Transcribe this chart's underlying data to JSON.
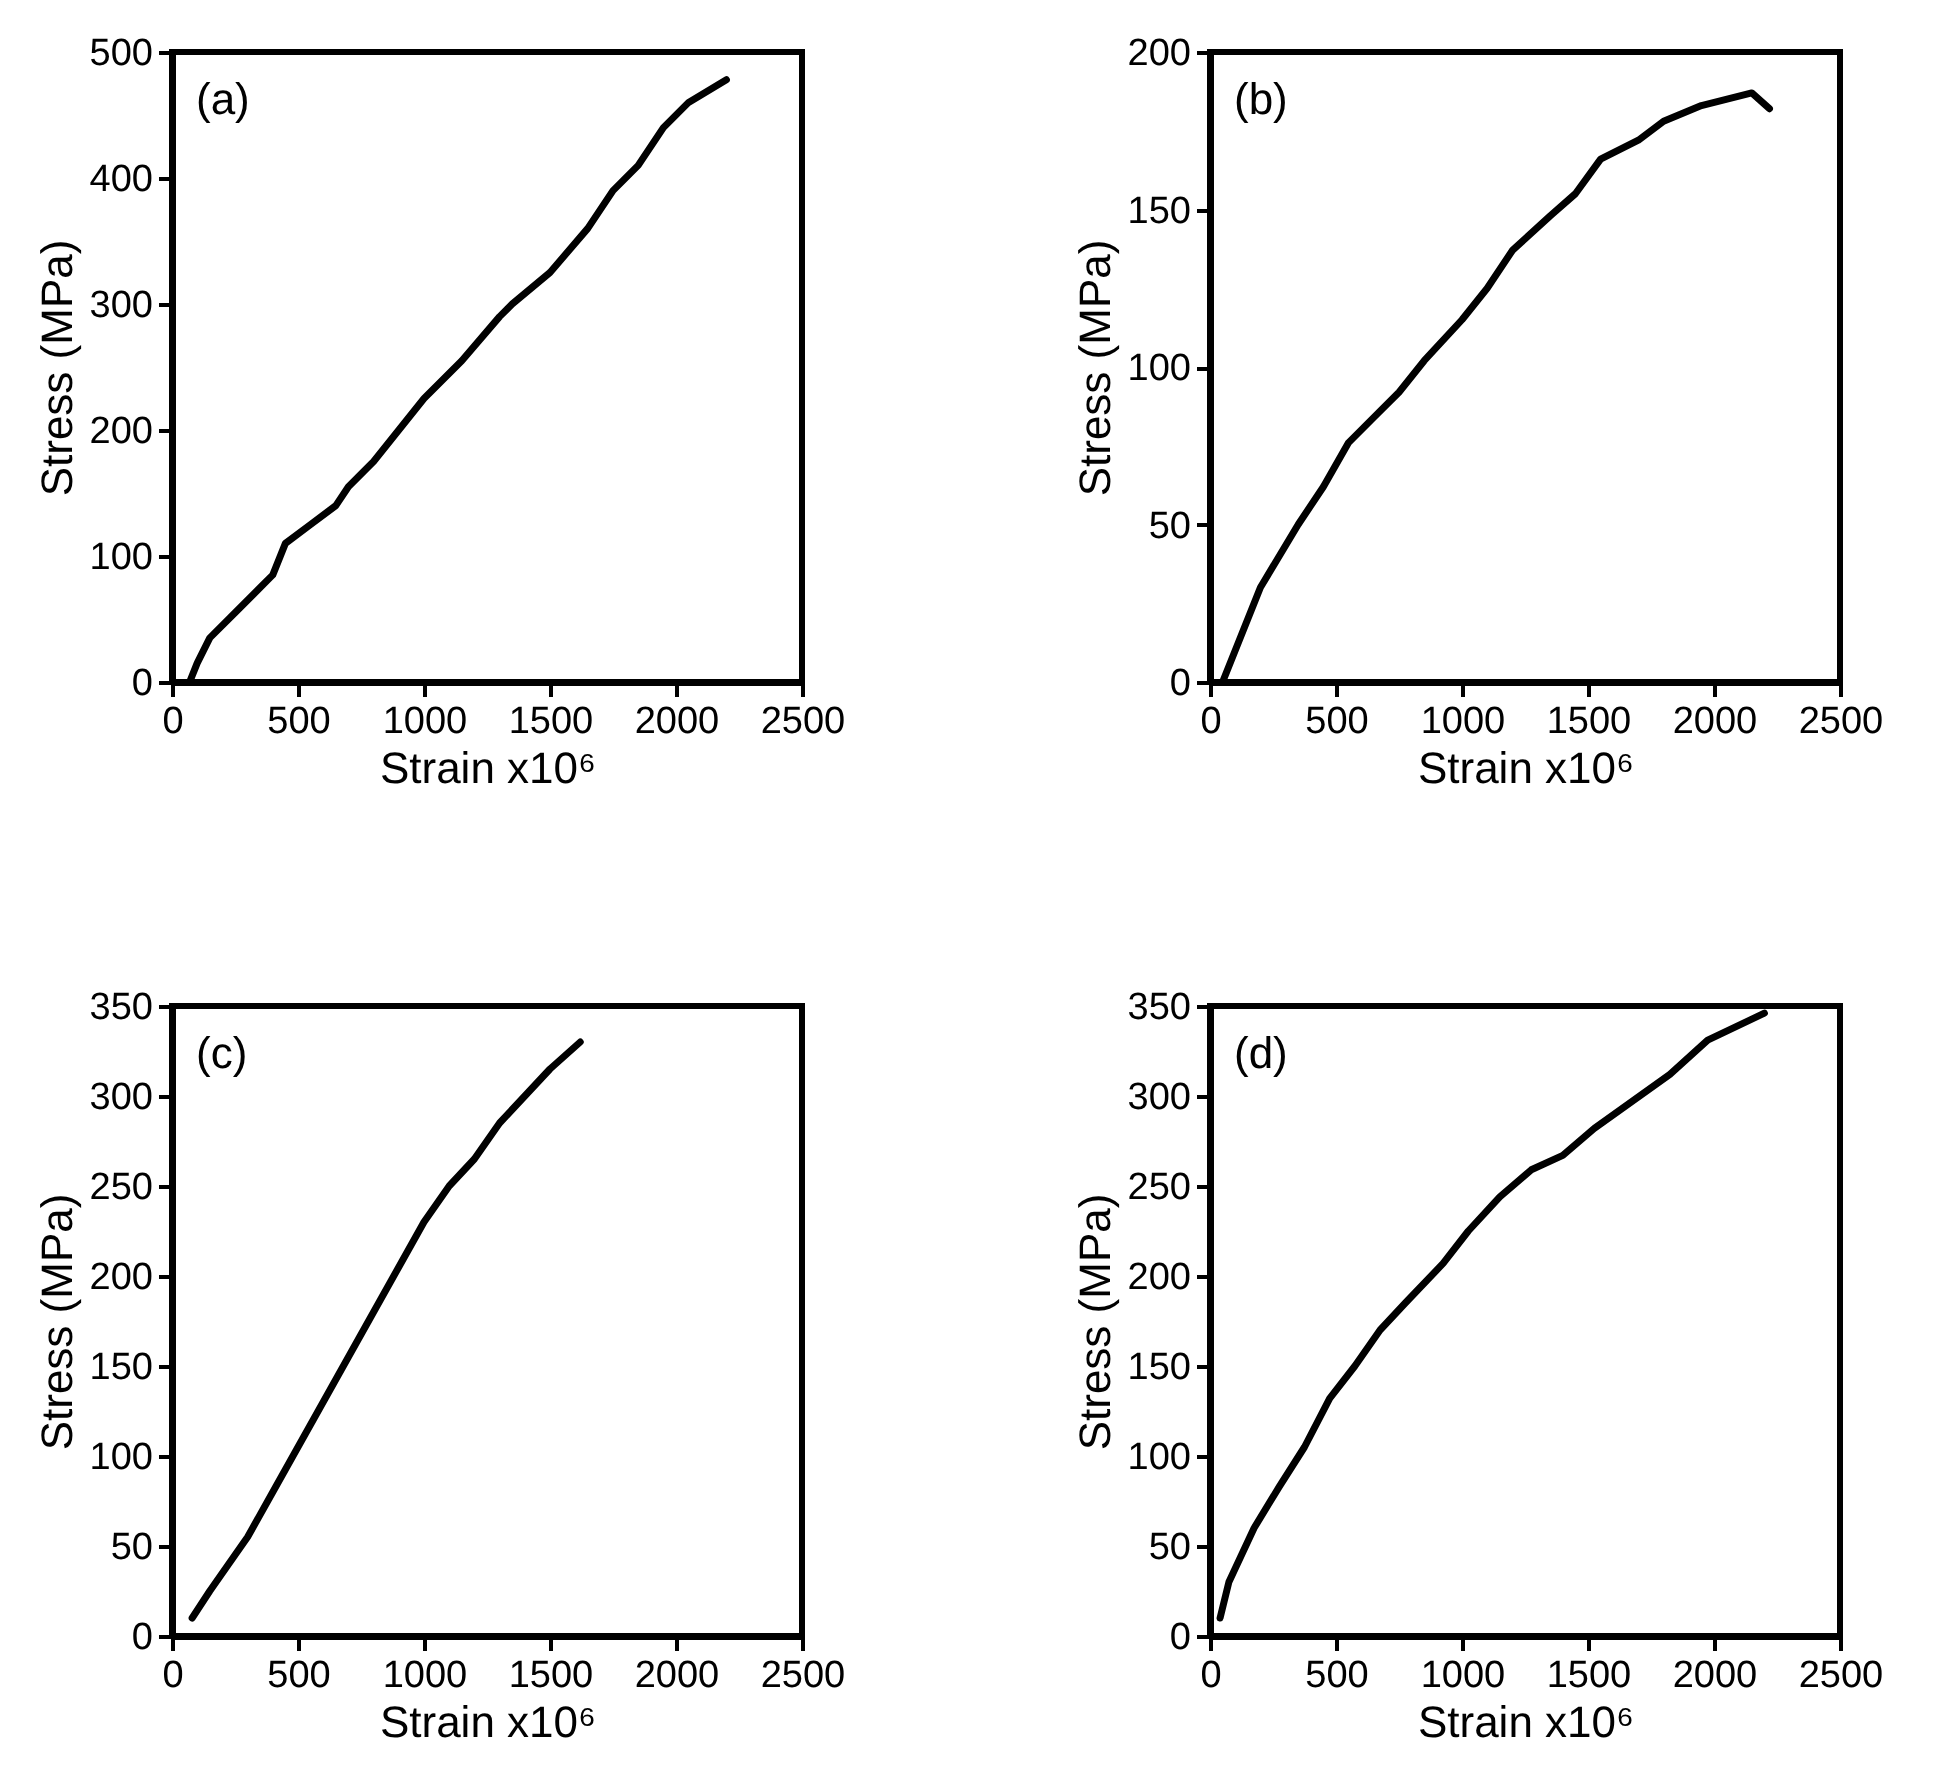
{
  "chart_data": [
    {
      "type": "line",
      "annotations": [
        "(a)"
      ],
      "xlabel": "Strain x10⁶",
      "ylabel": "Stress (MPa)",
      "xlim": [
        0,
        2500
      ],
      "xticks": [
        0,
        500,
        1000,
        1500,
        2000,
        2500
      ],
      "ylim": [
        0,
        500
      ],
      "yticks": [
        0,
        100,
        200,
        300,
        400,
        500
      ],
      "series": [
        {
          "color": "#000000",
          "x": [
            70,
            100,
            150,
            250,
            350,
            400,
            450,
            550,
            650,
            700,
            800,
            900,
            1000,
            1150,
            1300,
            1350,
            1500,
            1650,
            1750,
            1850,
            1950,
            2050,
            2200
          ],
          "values": [
            0,
            15,
            35,
            55,
            75,
            85,
            110,
            125,
            140,
            155,
            175,
            200,
            225,
            255,
            290,
            300,
            325,
            360,
            390,
            410,
            440,
            460,
            478
          ]
        }
      ]
    },
    {
      "type": "line",
      "annotations": [
        "(b)"
      ],
      "xlabel": "Strain x10⁶",
      "ylabel": "Stress (MPa)",
      "xlim": [
        0,
        2500
      ],
      "xticks": [
        0,
        500,
        1000,
        1500,
        2000,
        2500
      ],
      "ylim": [
        0,
        200
      ],
      "yticks": [
        0,
        50,
        100,
        150,
        200
      ],
      "series": [
        {
          "color": "#000000",
          "x": [
            50,
            200,
            350,
            450,
            550,
            650,
            750,
            850,
            1000,
            1100,
            1200,
            1350,
            1450,
            1550,
            1700,
            1800,
            1950,
            2150,
            2220
          ],
          "values": [
            0,
            30,
            50,
            62,
            76,
            84,
            92,
            102,
            115,
            125,
            137,
            148,
            155,
            166,
            172,
            178,
            183,
            187,
            182
          ]
        }
      ]
    },
    {
      "type": "line",
      "annotations": [
        "(c)"
      ],
      "xlabel": "Strain x10⁶",
      "ylabel": "Stress (MPa)",
      "xlim": [
        0,
        2500
      ],
      "xticks": [
        0,
        500,
        1000,
        1500,
        2000,
        2500
      ],
      "ylim": [
        0,
        350
      ],
      "yticks": [
        0,
        50,
        100,
        150,
        200,
        250,
        300,
        350
      ],
      "series": [
        {
          "color": "#000000",
          "x": [
            80,
            150,
            300,
            400,
            500,
            600,
            700,
            800,
            900,
            1000,
            1100,
            1200,
            1300,
            1400,
            1500,
            1620
          ],
          "values": [
            10,
            25,
            55,
            80,
            105,
            130,
            155,
            180,
            205,
            230,
            250,
            265,
            285,
            300,
            315,
            330
          ]
        }
      ]
    },
    {
      "type": "line",
      "annotations": [
        "(d)"
      ],
      "xlabel": "Strain x10⁶",
      "ylabel": "Stress (MPa)",
      "xlim": [
        0,
        2500
      ],
      "xticks": [
        0,
        500,
        1000,
        1500,
        2000,
        2500
      ],
      "ylim": [
        0,
        350
      ],
      "yticks": [
        0,
        50,
        100,
        150,
        200,
        250,
        300,
        350
      ],
      "series": [
        {
          "color": "#000000",
          "x": [
            40,
            75,
            175,
            275,
            375,
            475,
            575,
            675,
            775,
            925,
            1025,
            1150,
            1275,
            1400,
            1525,
            1675,
            1825,
            1975,
            2200
          ],
          "values": [
            10,
            30,
            60,
            83,
            105,
            132,
            150,
            170,
            185,
            207,
            225,
            244,
            259,
            267,
            282,
            297,
            312,
            331,
            346
          ]
        }
      ]
    }
  ]
}
